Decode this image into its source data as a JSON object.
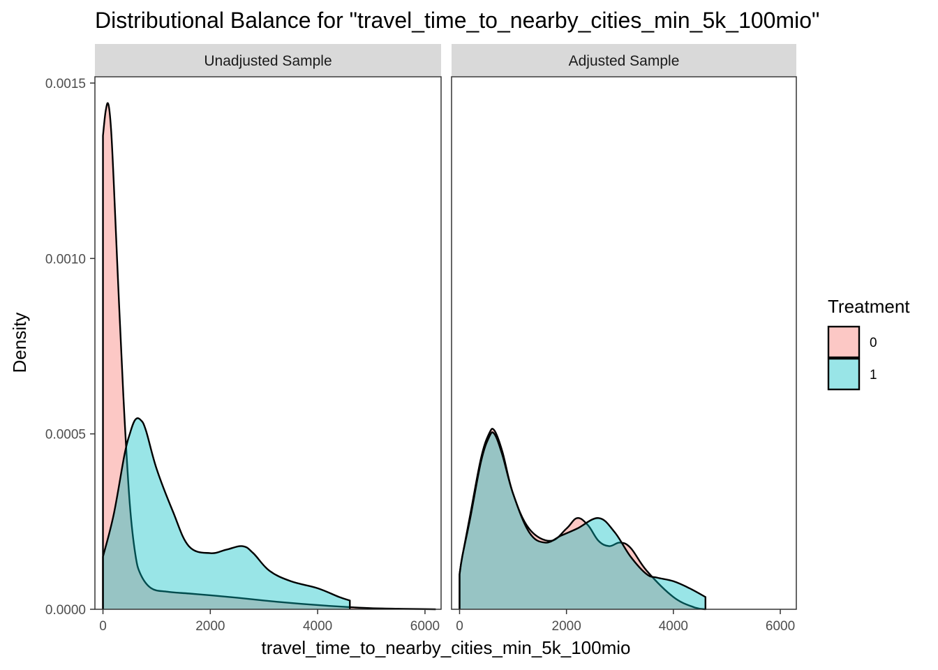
{
  "chart_data": {
    "type": "area",
    "title": "Distributional Balance for \"travel_time_to_nearby_cities_min_5k_100mio\"",
    "xlabel": "travel_time_to_nearby_cities_min_5k_100mio",
    "ylabel": "Density",
    "xlim": [
      -150,
      6300
    ],
    "ylim": [
      0,
      0.0015
    ],
    "x_ticks": [
      0,
      2000,
      4000,
      6000
    ],
    "x_tick_labels": [
      "0",
      "2000",
      "4000",
      "6000"
    ],
    "y_ticks": [
      0,
      0.0005,
      0.001,
      0.0015
    ],
    "y_tick_labels": [
      "0.0000",
      "0.0005",
      "0.0010",
      "0.0015"
    ],
    "legend": {
      "title": "Treatment",
      "position": "right",
      "entries": [
        {
          "label": "0",
          "color": "#F8766D"
        },
        {
          "label": "1",
          "color": "#00BFC4"
        }
      ]
    },
    "grid": false,
    "panels": [
      {
        "label": "Unadjusted Sample",
        "series": [
          {
            "name": "0",
            "color": "#F8766D",
            "x": [
              0,
              50,
              100,
              150,
              200,
              300,
              400,
              500,
              600,
              700,
              900,
              1200,
              1600,
              2000,
              2500,
              3000,
              3500,
              4000,
              4600,
              5000,
              5500,
              6000,
              6200
            ],
            "y": [
              0.00135,
              0.00142,
              0.00144,
              0.00137,
              0.00122,
              0.00087,
              0.00055,
              0.0003,
              0.00016,
              0.0001,
              6e-05,
              5e-05,
              4.5e-05,
              4e-05,
              3.3e-05,
              2.5e-05,
              1.8e-05,
              1.2e-05,
              6e-06,
              3e-06,
              1.5e-06,
              5e-07,
              0
            ]
          },
          {
            "name": "1",
            "color": "#00BFC4",
            "x": [
              0,
              200,
              400,
              500,
              600,
              700,
              800,
              1000,
              1300,
              1600,
              2000,
              2300,
              2600,
              2800,
              3100,
              3500,
              4000,
              4400,
              4600
            ],
            "y": [
              0.00015,
              0.00027,
              0.00044,
              0.0005,
              0.00054,
              0.00054,
              0.00051,
              0.0004,
              0.00028,
              0.00018,
              0.00016,
              0.00017,
              0.00018,
              0.00016,
              0.00011,
              8e-05,
              6e-05,
              3.5e-05,
              2.5e-05
            ]
          }
        ]
      },
      {
        "label": "Adjusted Sample",
        "series": [
          {
            "name": "0",
            "color": "#F8766D",
            "x": [
              0,
              50,
              200,
              400,
              550,
              650,
              800,
              1000,
              1300,
              1700,
              2000,
              2200,
              2400,
              2600,
              2800,
              3000,
              3200,
              3500,
              4000,
              4400,
              4600
            ],
            "y": [
              0.0001,
              0.00015,
              0.00027,
              0.00043,
              0.0005,
              0.00051,
              0.00045,
              0.00033,
              0.00023,
              0.000195,
              0.00023,
              0.00026,
              0.00024,
              0.000195,
              0.00018,
              0.00019,
              0.000175,
              0.00011,
              3.5e-05,
              5e-06,
              0
            ]
          },
          {
            "name": "1",
            "color": "#00BFC4",
            "x": [
              0,
              50,
              200,
              400,
              550,
              650,
              800,
              1000,
              1300,
              1600,
              1900,
              2200,
              2600,
              2900,
              3200,
              3500,
              3700,
              4000,
              4300,
              4600
            ],
            "y": [
              0.0001,
              0.00015,
              0.00026,
              0.00042,
              0.00049,
              0.0005,
              0.00044,
              0.00033,
              0.00022,
              0.00019,
              0.00021,
              0.00023,
              0.00026,
              0.00022,
              0.00015,
              0.0001,
              9e-05,
              8e-05,
              6e-05,
              3.5e-05
            ]
          }
        ]
      }
    ]
  }
}
